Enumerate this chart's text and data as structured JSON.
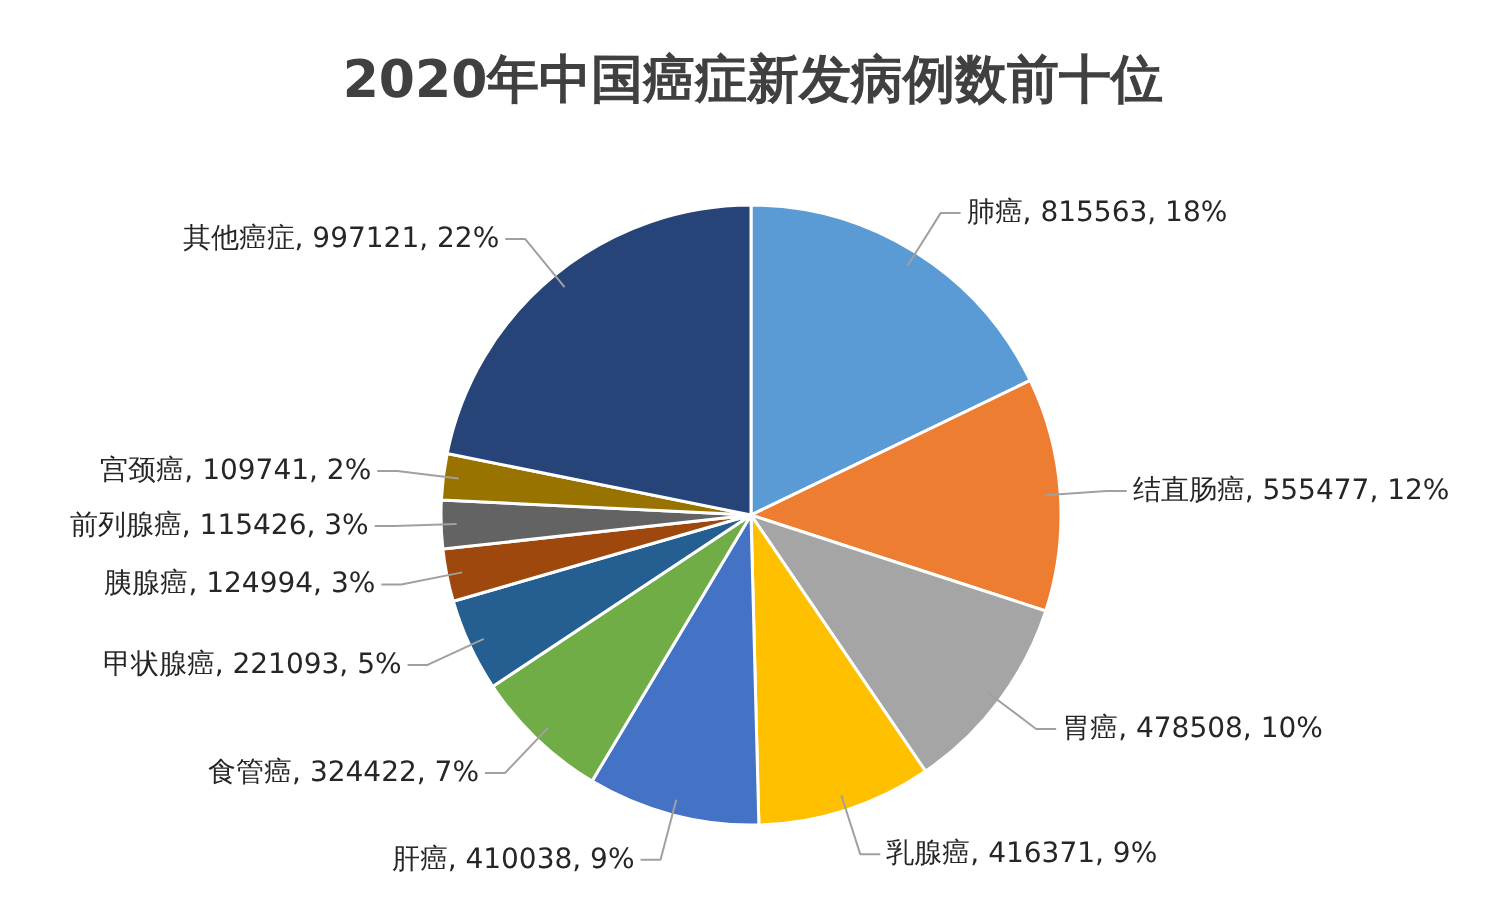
{
  "chart_data": {
    "type": "pie",
    "title": "2020年中国癌症新发病例数前十位",
    "categories": [
      "肺癌",
      "结直肠癌",
      "胃癌",
      "乳腺癌",
      "肝癌",
      "食管癌",
      "甲状腺癌",
      "胰腺癌",
      "前列腺癌",
      "宫颈癌",
      "其他癌症"
    ],
    "values": [
      815563,
      555477,
      478508,
      416371,
      410038,
      324422,
      221093,
      124994,
      115426,
      109741,
      997121
    ],
    "colors": [
      "#5b9bd5",
      "#ed7d31",
      "#a5a5a5",
      "#ffc000",
      "#4472c4",
      "#70ad47",
      "#255e91",
      "#9e480e",
      "#636363",
      "#997300",
      "#264478"
    ],
    "value_labels": [
      "815563, 18%",
      "555477, 12%",
      "478508, 10%",
      "416371, 9%",
      "410038, 9%",
      "324422, 7%",
      "221093, 5%",
      "124994, 3%",
      "115426, 3%",
      "109741, 2%",
      "997121, 22%"
    ]
  }
}
